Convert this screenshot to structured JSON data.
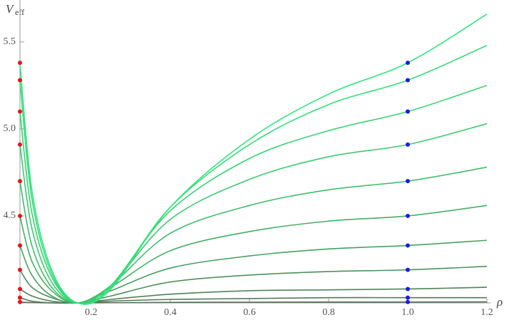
{
  "chart_data": {
    "type": "line",
    "xlabel": "ρ",
    "ylabel": {
      "text": "V",
      "subscript": "eff"
    },
    "x": [
      0.02,
      0.05,
      0.1,
      0.165,
      0.25,
      0.4,
      0.6,
      0.8,
      1.0,
      1.2
    ],
    "series": [
      {
        "color": "#2fe57c",
        "values": [
          5.38,
          4.65,
          4.19,
          4.0,
          4.08,
          4.55,
          4.94,
          5.2,
          5.38,
          5.66
        ]
      },
      {
        "color": "#33dd78",
        "values": [
          5.28,
          4.6,
          4.17,
          4.0,
          4.09,
          4.55,
          4.91,
          5.14,
          5.28,
          5.48
        ]
      },
      {
        "color": "#37d474",
        "values": [
          5.1,
          4.52,
          4.15,
          4.0,
          4.1,
          4.53,
          4.83,
          4.99,
          5.1,
          5.25
        ]
      },
      {
        "color": "#3bca6f",
        "values": [
          4.91,
          4.43,
          4.12,
          4.0,
          4.1,
          4.48,
          4.71,
          4.84,
          4.91,
          5.03
        ]
      },
      {
        "color": "#3fbe6a",
        "values": [
          4.7,
          4.33,
          4.09,
          4.0,
          4.1,
          4.4,
          4.56,
          4.65,
          4.7,
          4.78
        ]
      },
      {
        "color": "#43b065",
        "values": [
          4.5,
          4.24,
          4.07,
          4.0,
          4.09,
          4.3,
          4.41,
          4.47,
          4.5,
          4.56
        ]
      },
      {
        "color": "#47a160",
        "values": [
          4.33,
          4.16,
          4.04,
          4.0,
          4.07,
          4.2,
          4.27,
          4.31,
          4.33,
          4.36
        ]
      },
      {
        "color": "#4b925c",
        "values": [
          4.19,
          4.09,
          4.03,
          4.0,
          4.04,
          4.12,
          4.16,
          4.18,
          4.19,
          4.21
        ]
      },
      {
        "color": "#4f8458",
        "values": [
          4.08,
          4.04,
          4.01,
          4.0,
          4.02,
          4.05,
          4.07,
          4.075,
          4.08,
          4.09
        ]
      },
      {
        "color": "#547856",
        "values": [
          4.03,
          4.01,
          4.0,
          4.0,
          4.01,
          4.02,
          4.025,
          4.03,
          4.03,
          4.03
        ]
      },
      {
        "color": "#5a6e58",
        "values": [
          4.005,
          4.002,
          4.0,
          4.0,
          4.001,
          4.003,
          4.004,
          4.005,
          4.005,
          4.006
        ]
      }
    ],
    "markers": [
      {
        "x": 0.02,
        "color": "#e8141c"
      },
      {
        "x": 1.0,
        "color": "#1a1ae6"
      }
    ],
    "xlim": [
      0.02,
      1.2
    ],
    "ylim": [
      4.0,
      5.7
    ],
    "xticks": [
      0.2,
      0.4,
      0.6,
      0.8,
      {
        "value": 1.0,
        "label": "1.0"
      },
      1.2
    ],
    "yticks": [
      4.5,
      {
        "value": 5.0,
        "label": "5.0"
      },
      5.5
    ]
  }
}
